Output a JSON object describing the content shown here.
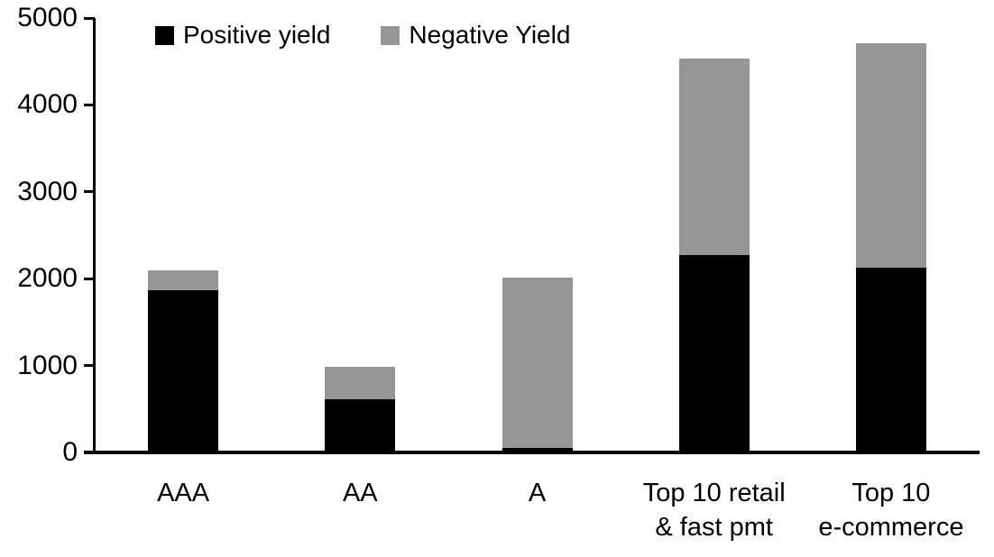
{
  "chart_data": {
    "type": "bar",
    "stacked": true,
    "title": "",
    "xlabel": "",
    "ylabel": "",
    "categories": [
      "AAA",
      "AA",
      "A",
      "Top 10 retail & fast pmt",
      "Top 10 e-commerce"
    ],
    "category_label_lines": [
      [
        "AAA"
      ],
      [
        "AA"
      ],
      [
        "A"
      ],
      [
        "Top 10 retail",
        "& fast pmt"
      ],
      [
        "Top 10",
        "e-commerce"
      ]
    ],
    "series": [
      {
        "name": "Positive yield",
        "color": "#000000",
        "values": [
          1870,
          610,
          50,
          2270,
          2130
        ]
      },
      {
        "name": "Negative Yield",
        "color": "#969696",
        "values": [
          230,
          380,
          1960,
          2260,
          2580
        ]
      }
    ],
    "totals": [
      2100,
      990,
      2010,
      4530,
      4710
    ],
    "ylim": [
      0,
      5000
    ],
    "yticks": [
      0,
      1000,
      2000,
      3000,
      4000,
      5000
    ],
    "grid": false,
    "legend_position": "top-left",
    "axis_color": "#000000",
    "background_color": "#ffffff"
  }
}
